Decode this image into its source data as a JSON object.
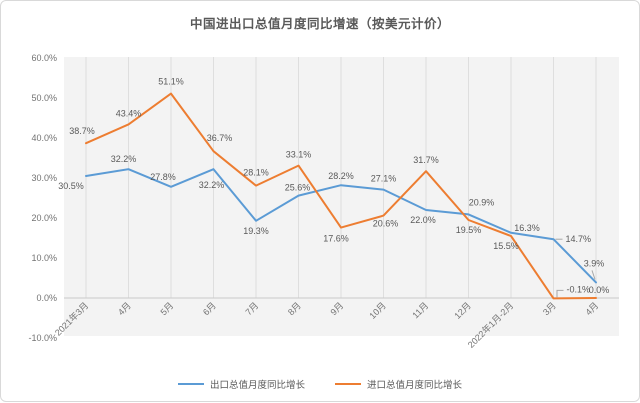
{
  "title": "中国进出口总值月度同比增速（按美元计价）",
  "chart_data": {
    "type": "line",
    "title": "中国进出口总值月度同比增速（按美元计价）",
    "categories": [
      "2021年3月",
      "4月",
      "5月",
      "6月",
      "7月",
      "8月",
      "9月",
      "10月",
      "11月",
      "12月",
      "2022年1月-2月",
      "3月",
      "4月"
    ],
    "series": [
      {
        "name": "出口总值月度同比增长",
        "color": "#5B9BD5",
        "values": [
          30.5,
          32.2,
          27.8,
          32.2,
          19.3,
          25.6,
          28.2,
          27.1,
          22.0,
          20.9,
          16.3,
          14.7,
          3.9
        ]
      },
      {
        "name": "进口总值月度同比增长",
        "color": "#ED7D31",
        "values": [
          38.7,
          43.4,
          51.1,
          36.7,
          28.1,
          33.1,
          17.6,
          20.6,
          31.7,
          19.5,
          15.5,
          -0.1,
          0.0
        ]
      }
    ],
    "y_axis": {
      "min": -10,
      "max": 60,
      "step": 10,
      "tick_values": [
        60,
        50,
        40,
        30,
        20,
        10,
        0,
        -10
      ],
      "tick_labels": [
        "60.0%",
        "50.0%",
        "40.0%",
        "30.0%",
        "20.0%",
        "10.0%",
        "0.0%",
        "-10.0%"
      ]
    },
    "grid": "vertical-only",
    "legend_position": "bottom",
    "label_format": "one-decimal-percent"
  }
}
